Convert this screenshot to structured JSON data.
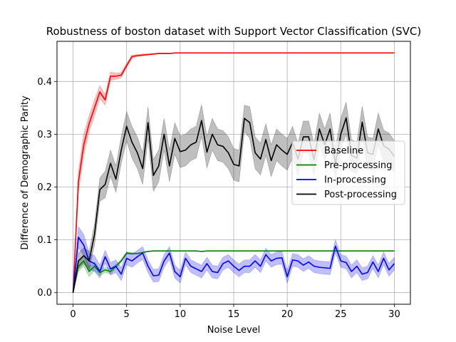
{
  "chart_data": {
    "type": "line",
    "title": "Robustness of boston dataset with Support Vector Classification (SVC)",
    "xlabel": "Noise Level",
    "ylabel": "Difference of Demographic Parity",
    "xlim": [
      -1.5,
      31.5
    ],
    "ylim": [
      -0.022,
      0.476
    ],
    "xticks": [
      0,
      5,
      10,
      15,
      20,
      25,
      30
    ],
    "yticks": [
      0.0,
      0.1,
      0.2,
      0.3,
      0.4
    ],
    "grid": true,
    "legend_position": "center-right",
    "x": [
      0,
      0.5,
      1,
      1.5,
      2,
      2.5,
      3,
      3.5,
      4,
      4.5,
      5,
      5.5,
      6,
      6.5,
      7,
      7.5,
      8,
      8.5,
      9,
      9.5,
      10,
      10.5,
      11,
      11.5,
      12,
      12.5,
      13,
      13.5,
      14,
      14.5,
      15,
      15.5,
      16,
      16.5,
      17,
      17.5,
      18,
      18.5,
      19,
      19.5,
      20,
      20.5,
      21,
      21.5,
      22,
      22.5,
      23,
      23.5,
      24,
      24.5,
      25,
      25.5,
      26,
      26.5,
      27,
      27.5,
      28,
      28.5,
      29,
      29.5,
      30
    ],
    "series": [
      {
        "name": "Baseline",
        "color": "#ff0000",
        "values": [
          0.0,
          0.21,
          0.28,
          0.32,
          0.35,
          0.38,
          0.365,
          0.41,
          0.41,
          0.412,
          0.43,
          0.447,
          0.449,
          0.45,
          0.451,
          0.452,
          0.453,
          0.453,
          0.453,
          0.454,
          0.454,
          0.454,
          0.454,
          0.454,
          0.454,
          0.454,
          0.454,
          0.454,
          0.454,
          0.454,
          0.454,
          0.454,
          0.454,
          0.454,
          0.454,
          0.454,
          0.454,
          0.454,
          0.454,
          0.454,
          0.454,
          0.454,
          0.454,
          0.454,
          0.454,
          0.454,
          0.454,
          0.454,
          0.454,
          0.454,
          0.454,
          0.454,
          0.454,
          0.454,
          0.454,
          0.454,
          0.454,
          0.454,
          0.454,
          0.454,
          0.454
        ],
        "band": [
          0.0,
          0.02,
          0.02,
          0.015,
          0.015,
          0.012,
          0.01,
          0.008,
          0.006,
          0.005,
          0.004,
          0.003,
          0.002,
          0.002,
          0.001,
          0.001,
          0.001,
          0.001,
          0.001,
          0.0,
          0.0,
          0.0,
          0.0,
          0.0,
          0.0,
          0.0,
          0.0,
          0.0,
          0.0,
          0.0,
          0.0,
          0.0,
          0.0,
          0.0,
          0.0,
          0.0,
          0.0,
          0.0,
          0.0,
          0.0,
          0.0,
          0.0,
          0.0,
          0.0,
          0.0,
          0.0,
          0.0,
          0.0,
          0.0,
          0.0,
          0.0,
          0.0,
          0.0,
          0.0,
          0.0,
          0.0,
          0.0,
          0.0,
          0.0,
          0.0,
          0.0
        ]
      },
      {
        "name": "Pre-processing",
        "color": "#008000",
        "values": [
          0.0,
          0.05,
          0.06,
          0.04,
          0.05,
          0.038,
          0.043,
          0.04,
          0.05,
          0.06,
          0.075,
          0.074,
          0.074,
          0.076,
          0.078,
          0.079,
          0.079,
          0.079,
          0.079,
          0.079,
          0.079,
          0.079,
          0.079,
          0.079,
          0.078,
          0.079,
          0.079,
          0.079,
          0.079,
          0.079,
          0.079,
          0.079,
          0.079,
          0.079,
          0.079,
          0.079,
          0.079,
          0.079,
          0.079,
          0.079,
          0.079,
          0.079,
          0.079,
          0.079,
          0.079,
          0.079,
          0.079,
          0.079,
          0.079,
          0.079,
          0.079,
          0.079,
          0.079,
          0.079,
          0.079,
          0.079,
          0.079,
          0.079,
          0.079,
          0.079,
          0.079
        ],
        "band": [
          0.0,
          0.01,
          0.01,
          0.01,
          0.008,
          0.006,
          0.005,
          0.005,
          0.004,
          0.003,
          0.002,
          0.002,
          0.001,
          0.001,
          0.001,
          0.0,
          0.0,
          0.0,
          0.0,
          0.0,
          0.0,
          0.0,
          0.0,
          0.0,
          0.0,
          0.0,
          0.0,
          0.0,
          0.0,
          0.0,
          0.0,
          0.0,
          0.0,
          0.0,
          0.0,
          0.0,
          0.0,
          0.0,
          0.0,
          0.0,
          0.0,
          0.0,
          0.0,
          0.0,
          0.0,
          0.0,
          0.0,
          0.0,
          0.0,
          0.0,
          0.0,
          0.0,
          0.0,
          0.0,
          0.0,
          0.0,
          0.0,
          0.0,
          0.0,
          0.0,
          0.0
        ]
      },
      {
        "name": "In-processing",
        "color": "#0000ff",
        "values": [
          0.0,
          0.105,
          0.09,
          0.06,
          0.055,
          0.04,
          0.068,
          0.045,
          0.05,
          0.035,
          0.065,
          0.06,
          0.068,
          0.075,
          0.05,
          0.032,
          0.033,
          0.06,
          0.075,
          0.04,
          0.03,
          0.065,
          0.05,
          0.045,
          0.04,
          0.055,
          0.04,
          0.038,
          0.055,
          0.06,
          0.05,
          0.042,
          0.05,
          0.05,
          0.06,
          0.05,
          0.072,
          0.06,
          0.065,
          0.066,
          0.03,
          0.062,
          0.06,
          0.052,
          0.058,
          0.05,
          0.048,
          0.047,
          0.046,
          0.088,
          0.06,
          0.057,
          0.04,
          0.05,
          0.035,
          0.038,
          0.058,
          0.04,
          0.065,
          0.043,
          0.055
        ],
        "band": [
          0.0,
          0.02,
          0.02,
          0.015,
          0.015,
          0.012,
          0.012,
          0.012,
          0.012,
          0.012,
          0.012,
          0.012,
          0.012,
          0.012,
          0.012,
          0.012,
          0.012,
          0.012,
          0.012,
          0.012,
          0.012,
          0.012,
          0.012,
          0.012,
          0.012,
          0.012,
          0.012,
          0.012,
          0.012,
          0.012,
          0.012,
          0.012,
          0.012,
          0.012,
          0.012,
          0.012,
          0.012,
          0.012,
          0.012,
          0.012,
          0.012,
          0.012,
          0.012,
          0.012,
          0.012,
          0.012,
          0.012,
          0.012,
          0.012,
          0.012,
          0.012,
          0.012,
          0.012,
          0.012,
          0.012,
          0.012,
          0.012,
          0.012,
          0.012,
          0.012,
          0.012
        ]
      },
      {
        "name": "Post-processing",
        "color": "#000000",
        "values": [
          0.0,
          0.06,
          0.07,
          0.06,
          0.11,
          0.195,
          0.205,
          0.245,
          0.215,
          0.27,
          0.315,
          0.285,
          0.265,
          0.235,
          0.322,
          0.222,
          0.24,
          0.3,
          0.24,
          0.292,
          0.267,
          0.27,
          0.28,
          0.285,
          0.326,
          0.266,
          0.3,
          0.28,
          0.277,
          0.265,
          0.243,
          0.24,
          0.33,
          0.322,
          0.265,
          0.253,
          0.29,
          0.25,
          0.28,
          0.27,
          0.262,
          0.285,
          0.253,
          0.295,
          0.295,
          0.252,
          0.31,
          0.28,
          0.31,
          0.245,
          0.3,
          0.331,
          0.26,
          0.255,
          0.323,
          0.265,
          0.262,
          0.31,
          0.278,
          0.272,
          0.258
        ],
        "band": [
          0.0,
          0.015,
          0.015,
          0.018,
          0.02,
          0.022,
          0.025,
          0.025,
          0.025,
          0.025,
          0.028,
          0.03,
          0.03,
          0.03,
          0.03,
          0.03,
          0.03,
          0.03,
          0.03,
          0.03,
          0.03,
          0.03,
          0.03,
          0.03,
          0.03,
          0.03,
          0.03,
          0.03,
          0.03,
          0.03,
          0.03,
          0.03,
          0.025,
          0.03,
          0.03,
          0.03,
          0.03,
          0.03,
          0.03,
          0.03,
          0.03,
          0.03,
          0.03,
          0.03,
          0.03,
          0.03,
          0.03,
          0.03,
          0.03,
          0.03,
          0.03,
          0.03,
          0.03,
          0.03,
          0.03,
          0.03,
          0.03,
          0.03,
          0.03,
          0.03,
          0.03
        ]
      }
    ]
  }
}
